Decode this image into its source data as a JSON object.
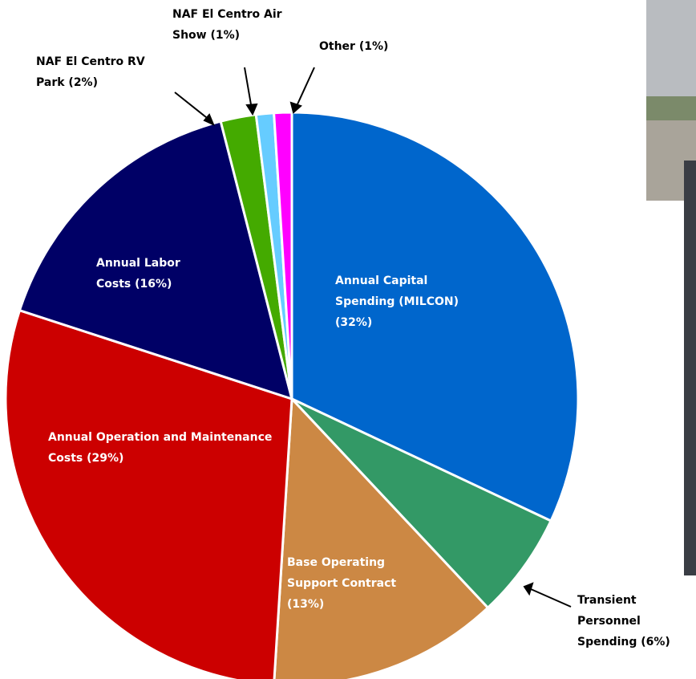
{
  "chart_data": {
    "type": "pie",
    "categories": [
      "Annual Capital Spending (MILCON)",
      "Transient Personnel Spending",
      "Base Operating Support Contract",
      "Annual Operation and Maintenance Costs",
      "Annual Labor Costs",
      "NAF El Centro RV Park",
      "NAF El Centro Air Show",
      "Other"
    ],
    "values": [
      32,
      6,
      13,
      29,
      16,
      2,
      1,
      1
    ],
    "value_labels": [
      "(32%)",
      "(6%)",
      "(13%)",
      "(29%)",
      "(16%)",
      "(2%)",
      "(1%)",
      "(1%)"
    ],
    "colors": [
      "#0066cc",
      "#339966",
      "#cc8844",
      "#cc0000",
      "#000066",
      "#44aa00",
      "#66ccff",
      "#ff00ff"
    ]
  }
}
